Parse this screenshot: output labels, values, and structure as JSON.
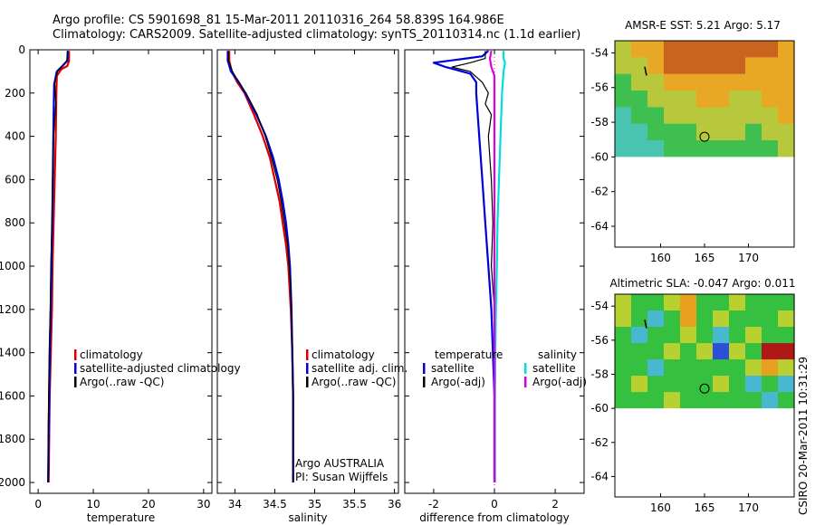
{
  "header": {
    "line1": "Argo profile: CS 5901698_81 15-Mar-2011 20110316_264 58.839S 164.986E",
    "line2": "Climatology: CARS2009. Satellite-adjusted climatology: synTS_20110314.nc (1.1d earlier)"
  },
  "colors": {
    "climatology": "#dd0000",
    "satellite": "#0000dd",
    "argo": "#000000",
    "salinity_satellite": "#00dddd",
    "salinity_argo": "#dd00dd",
    "dotted_zero": "#dd00dd"
  },
  "depth_axis": {
    "ylim": [
      2050,
      0
    ],
    "ticks": [
      0,
      200,
      400,
      600,
      800,
      1000,
      1200,
      1400,
      1600,
      1800,
      2000
    ]
  },
  "chart_data": [
    {
      "id": "temperature",
      "type": "line",
      "xlabel": "temperature",
      "xlim": [
        -1.5,
        31.5
      ],
      "xticks": [
        0,
        10,
        20,
        30
      ],
      "legend": [
        {
          "label": "climatology",
          "color": "#dd0000"
        },
        {
          "label": "satellite-adjusted climatology",
          "color": "#0000dd"
        },
        {
          "label": "Argo(..raw -QC)",
          "color": "#000000"
        }
      ],
      "series": [
        {
          "name": "climatology",
          "color": "#dd0000",
          "width": 2.2,
          "points": [
            [
              5.6,
              5
            ],
            [
              5.6,
              50
            ],
            [
              5.3,
              75
            ],
            [
              4.2,
              90
            ],
            [
              3.4,
              120
            ],
            [
              3.3,
              200
            ],
            [
              3.2,
              400
            ],
            [
              3.0,
              600
            ],
            [
              2.8,
              800
            ],
            [
              2.6,
              1000
            ],
            [
              2.5,
              1200
            ],
            [
              2.3,
              1400
            ],
            [
              2.1,
              1600
            ],
            [
              2.0,
              1800
            ],
            [
              1.9,
              2000
            ]
          ]
        },
        {
          "name": "satellite",
          "color": "#0000dd",
          "width": 2.2,
          "points": [
            [
              5.4,
              5
            ],
            [
              5.3,
              50
            ],
            [
              4.6,
              70
            ],
            [
              3.4,
              100
            ],
            [
              2.9,
              160
            ],
            [
              2.8,
              300
            ],
            [
              2.7,
              500
            ],
            [
              2.6,
              700
            ],
            [
              2.4,
              1000
            ],
            [
              2.2,
              1300
            ],
            [
              2.0,
              1600
            ],
            [
              1.9,
              1800
            ],
            [
              1.8,
              2000
            ]
          ]
        },
        {
          "name": "argo",
          "color": "#000000",
          "width": 1.2,
          "points": [
            [
              5.3,
              5
            ],
            [
              5.2,
              50
            ],
            [
              4.5,
              70
            ],
            [
              3.5,
              100
            ],
            [
              3.0,
              150
            ],
            [
              3.2,
              250
            ],
            [
              2.8,
              400
            ],
            [
              2.6,
              600
            ],
            [
              2.5,
              800
            ],
            [
              2.3,
              1000
            ],
            [
              2.2,
              1200
            ],
            [
              2.0,
              1400
            ],
            [
              1.9,
              1600
            ],
            [
              1.8,
              1800
            ],
            [
              1.8,
              2000
            ]
          ]
        }
      ]
    },
    {
      "id": "salinity",
      "type": "line",
      "xlabel": "salinity",
      "xlim": [
        33.78,
        36.05
      ],
      "xticks": [
        34,
        34.5,
        35,
        35.5,
        36
      ],
      "legend": [
        {
          "label": "climatology",
          "color": "#dd0000"
        },
        {
          "label": "satellite adj. clim.",
          "color": "#0000dd"
        },
        {
          "label": "Argo(..raw -QC)",
          "color": "#000000"
        }
      ],
      "annotation": [
        "Argo AUSTRALIA",
        "PI: Susan Wijffels"
      ],
      "series": [
        {
          "name": "climatology",
          "color": "#dd0000",
          "width": 2.2,
          "points": [
            [
              33.93,
              5
            ],
            [
              33.93,
              50
            ],
            [
              33.96,
              100
            ],
            [
              34.03,
              150
            ],
            [
              34.12,
              200
            ],
            [
              34.24,
              300
            ],
            [
              34.35,
              400
            ],
            [
              34.44,
              500
            ],
            [
              34.5,
              600
            ],
            [
              34.56,
              700
            ],
            [
              34.6,
              800
            ],
            [
              34.64,
              900
            ],
            [
              34.67,
              1000
            ],
            [
              34.7,
              1200
            ],
            [
              34.72,
              1400
            ],
            [
              34.73,
              1600
            ],
            [
              34.73,
              1800
            ],
            [
              34.73,
              2000
            ]
          ]
        },
        {
          "name": "satellite",
          "color": "#0000dd",
          "width": 2.2,
          "points": [
            [
              33.91,
              5
            ],
            [
              33.91,
              50
            ],
            [
              33.95,
              100
            ],
            [
              34.05,
              150
            ],
            [
              34.13,
              200
            ],
            [
              34.27,
              300
            ],
            [
              34.39,
              400
            ],
            [
              34.48,
              500
            ],
            [
              34.55,
              600
            ],
            [
              34.6,
              700
            ],
            [
              34.64,
              800
            ],
            [
              34.67,
              900
            ],
            [
              34.69,
              1000
            ],
            [
              34.71,
              1200
            ],
            [
              34.72,
              1400
            ],
            [
              34.73,
              1600
            ],
            [
              34.73,
              1800
            ],
            [
              34.73,
              2000
            ]
          ]
        },
        {
          "name": "argo",
          "color": "#000000",
          "width": 1.2,
          "points": [
            [
              33.92,
              5
            ],
            [
              33.92,
              50
            ],
            [
              33.97,
              100
            ],
            [
              34.05,
              150
            ],
            [
              34.14,
              200
            ],
            [
              34.28,
              300
            ],
            [
              34.38,
              400
            ],
            [
              34.46,
              500
            ],
            [
              34.53,
              600
            ],
            [
              34.58,
              700
            ],
            [
              34.62,
              800
            ],
            [
              34.66,
              900
            ],
            [
              34.68,
              1000
            ],
            [
              34.7,
              1100
            ],
            [
              34.71,
              1200
            ],
            [
              34.72,
              1400
            ],
            [
              34.73,
              1600
            ],
            [
              34.73,
              1800
            ],
            [
              34.73,
              2000
            ]
          ]
        }
      ]
    },
    {
      "id": "difference",
      "type": "line",
      "xlabel": "difference from climatology",
      "xlim": [
        -2.95,
        2.95
      ],
      "xticks": [
        -2,
        0,
        2
      ],
      "legend": [
        {
          "label": "temperature",
          "color": "none"
        },
        {
          "label": "satellite",
          "color": "#0000dd"
        },
        {
          "label": "Argo(-adj)",
          "color": "#000000"
        },
        {
          "label": "salinity",
          "color": "none"
        },
        {
          "label": "satellite",
          "color": "#00dddd"
        },
        {
          "label": "Argo(-adj)",
          "color": "#dd00dd"
        }
      ],
      "series": [
        {
          "name": "temperature satellite",
          "color": "#0000dd",
          "width": 2.2,
          "points": [
            [
              -0.2,
              5
            ],
            [
              -0.4,
              30
            ],
            [
              -1.2,
              45
            ],
            [
              -2.0,
              60
            ],
            [
              -1.6,
              80
            ],
            [
              -0.8,
              110
            ],
            [
              -0.6,
              150
            ],
            [
              -0.6,
              200
            ],
            [
              -0.5,
              400
            ],
            [
              -0.4,
              600
            ],
            [
              -0.3,
              800
            ],
            [
              -0.2,
              1000
            ],
            [
              -0.1,
              1200
            ],
            [
              -0.05,
              1400
            ],
            [
              0,
              1600
            ],
            [
              0,
              1800
            ],
            [
              0,
              2000
            ]
          ]
        },
        {
          "name": "temperature argo",
          "color": "#000000",
          "width": 1.2,
          "points": [
            [
              -0.3,
              5
            ],
            [
              -0.3,
              40
            ],
            [
              -0.8,
              60
            ],
            [
              -1.4,
              80
            ],
            [
              -0.8,
              100
            ],
            [
              -0.4,
              150
            ],
            [
              -0.2,
              200
            ],
            [
              -0.3,
              250
            ],
            [
              -0.1,
              300
            ],
            [
              -0.2,
              400
            ],
            [
              -0.1,
              600
            ],
            [
              -0.05,
              800
            ],
            [
              -0.1,
              1000
            ],
            [
              0,
              1200
            ],
            [
              0,
              1400
            ],
            [
              0,
              1600
            ],
            [
              0,
              1800
            ],
            [
              0,
              2000
            ]
          ]
        },
        {
          "name": "salinity satellite",
          "color": "#00dddd",
          "width": 2.2,
          "points": [
            [
              0.3,
              5
            ],
            [
              0.3,
              40
            ],
            [
              0.35,
              60
            ],
            [
              0.3,
              100
            ],
            [
              0.25,
              200
            ],
            [
              0.2,
              400
            ],
            [
              0.15,
              600
            ],
            [
              0.1,
              800
            ],
            [
              0.08,
              1000
            ],
            [
              0.05,
              1200
            ],
            [
              0.03,
              1400
            ],
            [
              0.02,
              1600
            ],
            [
              0.02,
              1800
            ],
            [
              0.02,
              2000
            ]
          ]
        },
        {
          "name": "salinity argo",
          "color": "#dd00dd",
          "width": 2.2,
          "points": [
            [
              -0.1,
              5
            ],
            [
              -0.15,
              40
            ],
            [
              -0.1,
              80
            ],
            [
              0,
              120
            ],
            [
              0,
              2000
            ]
          ]
        }
      ]
    }
  ],
  "maps": [
    {
      "id": "sst",
      "title": "AMSR-E SST: 5.21 Argo: 5.17",
      "ylim": [
        -65.2,
        -53.3
      ],
      "xlim": [
        154.8,
        175.2
      ],
      "yticks": [
        -54,
        -56,
        -58,
        -60,
        -62,
        -64
      ],
      "yticklabels": [
        "-54",
        "-56",
        "-58",
        "-60",
        "-62",
        "-64"
      ],
      "xticks": [
        160,
        165,
        170
      ],
      "data_bottom_lat": -60,
      "argo_marker": [
        165.0,
        -58.84
      ],
      "field": [
        [
          3,
          4,
          4,
          5,
          5,
          5,
          5,
          5,
          5,
          5,
          4
        ],
        [
          3,
          3,
          4,
          5,
          5,
          5,
          5,
          5,
          4,
          4,
          4
        ],
        [
          2,
          3,
          3,
          4,
          4,
          4,
          4,
          4,
          4,
          4,
          4
        ],
        [
          2,
          2,
          3,
          3,
          3,
          4,
          4,
          3,
          3,
          4,
          4
        ],
        [
          1,
          2,
          2,
          3,
          3,
          3,
          3,
          3,
          3,
          3,
          4
        ],
        [
          1,
          1,
          2,
          2,
          2,
          3,
          3,
          3,
          2,
          3,
          3
        ],
        [
          1,
          1,
          1,
          2,
          2,
          2,
          2,
          2,
          2,
          2,
          3
        ]
      ],
      "palette": [
        "#3a8be8",
        "#49c4b0",
        "#3fbf4f",
        "#b8c83c",
        "#e8a826",
        "#c8641e"
      ]
    },
    {
      "id": "sla",
      "title": "Altimetric SLA: -0.047 Argo: 0.011",
      "ylim": [
        -65.2,
        -53.3
      ],
      "xlim": [
        154.8,
        175.2
      ],
      "yticks": [
        -54,
        -56,
        -58,
        -60,
        -62,
        -64
      ],
      "yticklabels": [
        "-54",
        "-56",
        "-58",
        "-60",
        "-62",
        "-64"
      ],
      "xticks": [
        160,
        165,
        170
      ],
      "data_bottom_lat": -60,
      "argo_marker": [
        165.0,
        -58.84
      ],
      "field": [
        [
          3,
          2,
          2,
          3,
          4,
          2,
          2,
          3,
          2,
          2,
          2
        ],
        [
          3,
          2,
          1,
          2,
          4,
          2,
          3,
          2,
          2,
          2,
          3
        ],
        [
          2,
          1,
          2,
          2,
          3,
          2,
          1,
          2,
          3,
          2,
          2
        ],
        [
          2,
          2,
          2,
          3,
          2,
          3,
          0,
          3,
          2,
          5,
          5
        ],
        [
          2,
          2,
          1,
          2,
          2,
          2,
          2,
          2,
          3,
          4,
          3
        ],
        [
          2,
          3,
          2,
          2,
          2,
          2,
          3,
          2,
          1,
          2,
          1
        ],
        [
          2,
          2,
          2,
          3,
          2,
          2,
          2,
          2,
          2,
          1,
          2
        ]
      ],
      "palette": [
        "#2a4fd8",
        "#48b8d0",
        "#36c040",
        "#b8d030",
        "#e8a020",
        "#b01818"
      ]
    }
  ],
  "timestamp": "CSIRO 20-Mar-2011 10:31:29"
}
